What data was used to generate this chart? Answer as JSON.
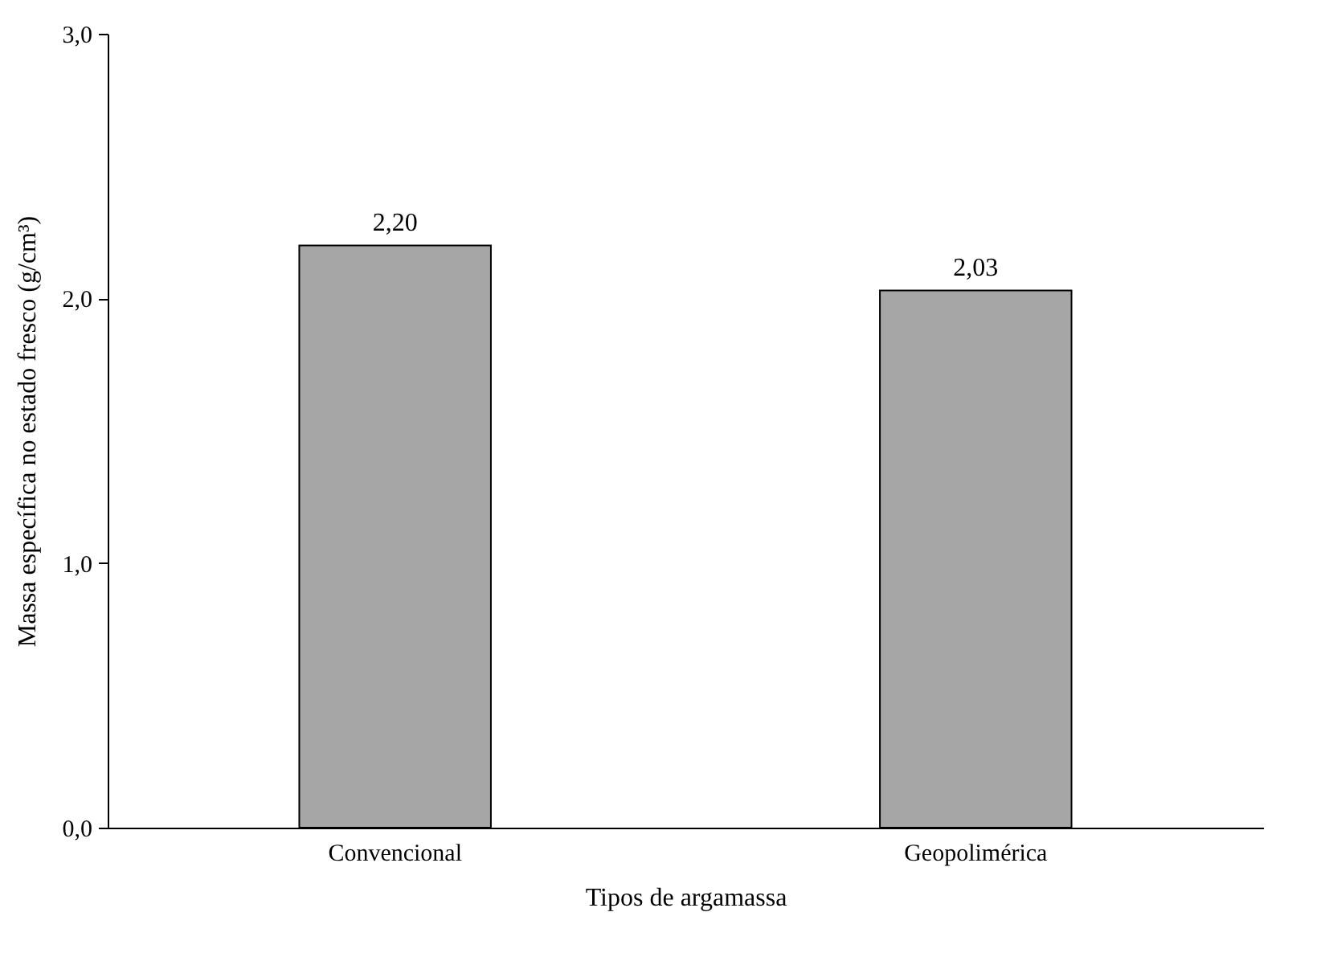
{
  "chart_data": {
    "type": "bar",
    "xlabel": "Tipos de argamassa",
    "ylabel": "Massa específica no estado fresco (g/cm³)",
    "categories": [
      "Convencional",
      "Geopolimérica"
    ],
    "values": [
      2.2,
      2.03
    ],
    "color": "#a6a6a6",
    "value_labels": [
      "2,20",
      "2,03"
    ],
    "ylim": [
      0,
      3
    ],
    "yticks": [
      {
        "value": 0,
        "label": "0,0"
      },
      {
        "value": 1,
        "label": "1,0"
      },
      {
        "value": 2,
        "label": "2,0"
      },
      {
        "value": 3,
        "label": "3,0"
      }
    ],
    "grid": false
  }
}
